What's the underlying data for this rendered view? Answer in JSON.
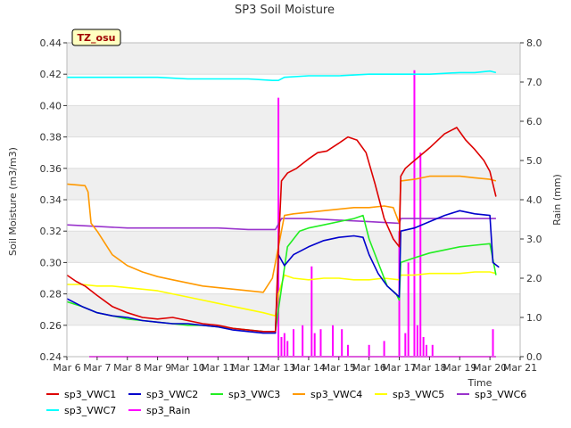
{
  "chart_data": {
    "type": "line",
    "title": "SP3 Soil Moisture",
    "xlabel": "Time",
    "ylabel": "Soil Moisture (m3/m3)",
    "y2label": "Rain (mm)",
    "badge": "TZ_osu",
    "x_ticks": [
      "Mar 6",
      "Mar 7",
      "Mar 8",
      "Mar 9",
      "Mar 10",
      "Mar 11",
      "Mar 12",
      "Mar 13",
      "Mar 14",
      "Mar 15",
      "Mar 16",
      "Mar 17",
      "Mar 18",
      "Mar 19",
      "Mar 20",
      "Mar 21"
    ],
    "xlim": [
      0,
      15
    ],
    "ylim": [
      0.24,
      0.44
    ],
    "y_ticks": [
      "0.24",
      "0.26",
      "0.28",
      "0.30",
      "0.32",
      "0.34",
      "0.36",
      "0.38",
      "0.40",
      "0.42",
      "0.44"
    ],
    "y2lim": [
      0.0,
      8.0
    ],
    "y2_ticks": [
      "0.0",
      "1.0",
      "2.0",
      "3.0",
      "4.0",
      "5.0",
      "6.0",
      "7.0",
      "8.0"
    ],
    "grid": "horizontal bands",
    "legend_position": "bottom",
    "colors": {
      "sp3_VWC1": "#dd0000",
      "sp3_VWC2": "#0000cc",
      "sp3_VWC3": "#22ee22",
      "sp3_VWC4": "#ff9900",
      "sp3_VWC5": "#ffff00",
      "sp3_VWC6": "#9933cc",
      "sp3_VWC7": "#00ffff",
      "sp3_Rain": "#ff00ff"
    },
    "series": [
      {
        "name": "sp3_VWC1",
        "axis": "left",
        "x": [
          0.0,
          0.3,
          0.6,
          1.0,
          1.5,
          2.0,
          2.5,
          3.0,
          3.5,
          4.0,
          4.5,
          5.0,
          5.5,
          6.0,
          6.5,
          6.9,
          7.0,
          7.1,
          7.3,
          7.6,
          8.0,
          8.3,
          8.6,
          9.0,
          9.3,
          9.6,
          9.9,
          10.2,
          10.5,
          10.8,
          11.0,
          11.05,
          11.2,
          11.5,
          12.0,
          12.5,
          12.9,
          13.2,
          13.5,
          13.8,
          14.0,
          14.2
        ],
        "y": [
          0.292,
          0.288,
          0.285,
          0.279,
          0.272,
          0.268,
          0.265,
          0.264,
          0.265,
          0.263,
          0.261,
          0.26,
          0.258,
          0.257,
          0.256,
          0.256,
          0.31,
          0.352,
          0.357,
          0.36,
          0.366,
          0.37,
          0.371,
          0.376,
          0.38,
          0.378,
          0.37,
          0.35,
          0.328,
          0.315,
          0.31,
          0.355,
          0.36,
          0.365,
          0.373,
          0.382,
          0.386,
          0.378,
          0.372,
          0.365,
          0.358,
          0.342
        ]
      },
      {
        "name": "sp3_VWC2",
        "axis": "left",
        "x": [
          0.0,
          0.5,
          1.0,
          1.5,
          2.0,
          2.5,
          3.0,
          3.5,
          4.0,
          4.5,
          5.0,
          5.5,
          6.0,
          6.5,
          6.9,
          7.0,
          7.2,
          7.5,
          8.0,
          8.5,
          9.0,
          9.5,
          9.8,
          10.0,
          10.3,
          10.6,
          11.0,
          11.05,
          11.5,
          12.0,
          12.5,
          13.0,
          13.5,
          14.0,
          14.1,
          14.3
        ],
        "y": [
          0.277,
          0.272,
          0.268,
          0.266,
          0.265,
          0.263,
          0.262,
          0.261,
          0.261,
          0.26,
          0.259,
          0.257,
          0.256,
          0.255,
          0.255,
          0.305,
          0.298,
          0.305,
          0.31,
          0.314,
          0.316,
          0.317,
          0.316,
          0.305,
          0.293,
          0.285,
          0.278,
          0.32,
          0.322,
          0.326,
          0.33,
          0.333,
          0.331,
          0.33,
          0.3,
          0.297
        ]
      },
      {
        "name": "sp3_VWC3",
        "axis": "left",
        "x": [
          0.0,
          0.5,
          1.0,
          1.5,
          2.0,
          2.5,
          3.0,
          3.5,
          4.0,
          4.5,
          5.0,
          5.5,
          6.0,
          6.5,
          6.9,
          7.0,
          7.3,
          7.7,
          8.0,
          8.5,
          9.0,
          9.5,
          9.8,
          10.0,
          10.3,
          10.6,
          10.9,
          11.0,
          11.05,
          11.5,
          12.0,
          12.5,
          13.0,
          13.5,
          14.0,
          14.2
        ],
        "y": [
          0.275,
          0.272,
          0.268,
          0.266,
          0.264,
          0.263,
          0.262,
          0.261,
          0.26,
          0.26,
          0.259,
          0.258,
          0.257,
          0.256,
          0.256,
          0.27,
          0.31,
          0.32,
          0.322,
          0.324,
          0.326,
          0.328,
          0.33,
          0.315,
          0.3,
          0.285,
          0.28,
          0.276,
          0.3,
          0.303,
          0.306,
          0.308,
          0.31,
          0.311,
          0.312,
          0.292
        ]
      },
      {
        "name": "sp3_VWC4",
        "axis": "left",
        "x": [
          0.0,
          0.6,
          0.7,
          0.8,
          1.0,
          1.5,
          2.0,
          2.5,
          3.0,
          3.5,
          4.0,
          4.5,
          5.0,
          5.5,
          6.0,
          6.5,
          6.8,
          7.0,
          7.2,
          7.5,
          8.0,
          8.5,
          9.0,
          9.5,
          10.0,
          10.5,
          10.8,
          11.0,
          11.05,
          11.5,
          12.0,
          12.5,
          13.0,
          13.5,
          14.0,
          14.2
        ],
        "y": [
          0.35,
          0.349,
          0.345,
          0.325,
          0.32,
          0.305,
          0.298,
          0.294,
          0.291,
          0.289,
          0.287,
          0.285,
          0.284,
          0.283,
          0.282,
          0.281,
          0.29,
          0.31,
          0.33,
          0.331,
          0.332,
          0.333,
          0.334,
          0.335,
          0.335,
          0.336,
          0.335,
          0.325,
          0.352,
          0.353,
          0.355,
          0.355,
          0.355,
          0.354,
          0.353,
          0.352
        ]
      },
      {
        "name": "sp3_VWC5",
        "axis": "left",
        "x": [
          0.0,
          0.5,
          1.0,
          1.5,
          2.0,
          2.5,
          3.0,
          3.5,
          4.0,
          4.5,
          5.0,
          5.5,
          6.0,
          6.5,
          6.9,
          7.0,
          7.2,
          7.5,
          8.0,
          8.5,
          9.0,
          9.5,
          10.0,
          10.5,
          11.0,
          11.05,
          11.5,
          12.0,
          12.5,
          13.0,
          13.5,
          14.0,
          14.2
        ],
        "y": [
          0.286,
          0.286,
          0.285,
          0.285,
          0.284,
          0.283,
          0.282,
          0.28,
          0.278,
          0.276,
          0.274,
          0.272,
          0.27,
          0.268,
          0.266,
          0.28,
          0.292,
          0.29,
          0.289,
          0.29,
          0.29,
          0.289,
          0.289,
          0.29,
          0.289,
          0.292,
          0.292,
          0.293,
          0.293,
          0.293,
          0.294,
          0.294,
          0.293
        ]
      },
      {
        "name": "sp3_VWC6",
        "axis": "left",
        "x": [
          0.0,
          1.0,
          2.0,
          3.0,
          4.0,
          5.0,
          6.0,
          6.9,
          7.1,
          8.0,
          9.0,
          10.0,
          11.0,
          11.05,
          12.0,
          13.0,
          14.0,
          14.2
        ],
        "y": [
          0.324,
          0.323,
          0.322,
          0.322,
          0.322,
          0.322,
          0.321,
          0.321,
          0.328,
          0.328,
          0.327,
          0.326,
          0.325,
          0.328,
          0.328,
          0.328,
          0.328,
          0.328
        ]
      },
      {
        "name": "sp3_VWC7",
        "axis": "left",
        "x": [
          0.0,
          1.0,
          2.0,
          3.0,
          4.0,
          5.0,
          6.0,
          6.8,
          7.0,
          7.2,
          8.0,
          9.0,
          10.0,
          11.0,
          12.0,
          13.0,
          13.5,
          14.0,
          14.2
        ],
        "y": [
          0.418,
          0.418,
          0.418,
          0.418,
          0.417,
          0.417,
          0.417,
          0.416,
          0.416,
          0.418,
          0.419,
          0.419,
          0.42,
          0.42,
          0.42,
          0.421,
          0.421,
          0.422,
          0.421
        ]
      },
      {
        "name": "sp3_Rain",
        "axis": "right",
        "x": [
          7.0,
          7.1,
          7.2,
          7.3,
          7.5,
          7.8,
          8.1,
          8.2,
          8.4,
          8.8,
          9.1,
          9.3,
          10.0,
          10.5,
          11.0,
          11.2,
          11.3,
          11.5,
          11.6,
          11.7,
          11.8,
          11.9,
          12.1,
          14.1
        ],
        "y": [
          6.6,
          0.5,
          0.6,
          0.4,
          0.7,
          0.8,
          2.3,
          0.6,
          0.7,
          0.8,
          0.7,
          0.3,
          0.3,
          0.4,
          3.2,
          0.6,
          2.4,
          7.3,
          0.8,
          5.2,
          0.5,
          0.3,
          0.3,
          0.7
        ]
      }
    ]
  }
}
